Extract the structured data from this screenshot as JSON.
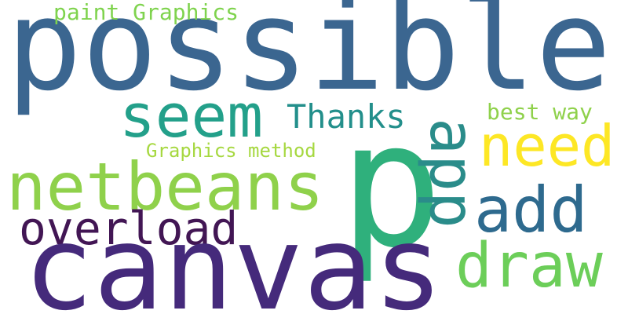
{
  "words": [
    {
      "text": "possible",
      "color": "#3b6690"
    },
    {
      "text": "canvas",
      "color": "#452a7b"
    },
    {
      "text": "p",
      "color": "#2fb07c"
    },
    {
      "text": "netbeans",
      "color": "#8fd14b"
    },
    {
      "text": "seem",
      "color": "#23a08a"
    },
    {
      "text": "need",
      "color": "#fde725"
    },
    {
      "text": "add",
      "color": "#2e6a8e"
    },
    {
      "text": "draw",
      "color": "#6cce59"
    },
    {
      "text": "app",
      "color": "#2a8c8a"
    },
    {
      "text": "overload",
      "color": "#421654"
    },
    {
      "text": "Thanks",
      "color": "#238f8b"
    },
    {
      "text": "paint Graphics",
      "color": "#7fd34e"
    },
    {
      "text": "best way",
      "color": "#8fd14b"
    },
    {
      "text": "Graphics method",
      "color": "#a6d840"
    }
  ]
}
